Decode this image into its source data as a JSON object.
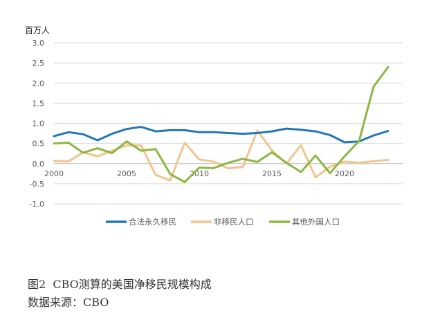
{
  "chart_data": {
    "type": "line",
    "title": "",
    "unit_label": "百万人",
    "xlabel": "",
    "ylabel": "",
    "xlim": [
      2000,
      2024
    ],
    "ylim": [
      -1.0,
      3.0
    ],
    "y_ticks": [
      "3.0",
      "2.5",
      "2.0",
      "1.5",
      "1.0",
      "0.5",
      "0.0",
      "-0.5",
      "-1.0"
    ],
    "x_ticks": [
      "2000",
      "2005",
      "2010",
      "2015",
      "2020"
    ],
    "grid": true,
    "legend_position": "bottom",
    "x": [
      2000,
      2001,
      2002,
      2003,
      2004,
      2005,
      2006,
      2007,
      2008,
      2009,
      2010,
      2011,
      2012,
      2013,
      2014,
      2015,
      2016,
      2017,
      2018,
      2019,
      2020,
      2021,
      2022,
      2023,
      2024
    ],
    "series": [
      {
        "name": "合法永久移民",
        "color": "#1f77b4",
        "values": [
          0.68,
          0.78,
          0.73,
          0.58,
          0.74,
          0.86,
          0.91,
          0.8,
          0.83,
          0.83,
          0.78,
          0.78,
          0.76,
          0.74,
          0.76,
          0.8,
          0.87,
          0.84,
          0.8,
          0.71,
          0.53,
          0.55,
          0.7,
          0.81,
          null
        ]
      },
      {
        "name": "非移民人口",
        "color": "#f4c48d",
        "values": [
          0.07,
          0.05,
          0.28,
          0.18,
          0.32,
          0.45,
          0.45,
          -0.28,
          -0.42,
          0.52,
          0.1,
          0.05,
          -0.12,
          -0.08,
          0.82,
          0.33,
          0.0,
          0.46,
          -0.34,
          -0.08,
          0.05,
          0.02,
          0.06,
          0.09,
          null
        ]
      },
      {
        "name": "其他外国人口",
        "color": "#8cb740",
        "values": [
          0.5,
          0.52,
          0.27,
          0.38,
          0.26,
          0.55,
          0.32,
          0.36,
          -0.26,
          -0.46,
          -0.1,
          -0.11,
          0.02,
          0.12,
          0.04,
          0.28,
          0.02,
          -0.21,
          0.2,
          -0.24,
          0.18,
          0.56,
          1.91,
          2.4,
          null
        ]
      }
    ]
  },
  "caption": {
    "figure_title": "图2  CBO测算的美国净移民规模构成",
    "source": "数据来源：CBO"
  }
}
